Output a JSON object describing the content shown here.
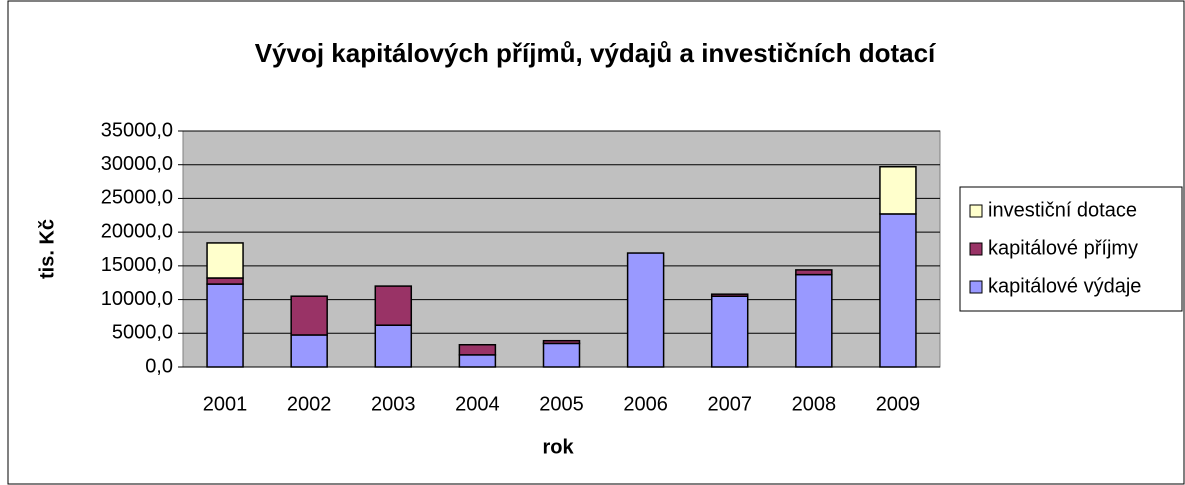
{
  "chart_data": {
    "type": "stacked_bar",
    "title": "Vývoj kapitálových příjmů, výdajů a investičních dotací",
    "x_label": "rok",
    "y_label": "tis. Kč",
    "categories": [
      "2001",
      "2002",
      "2003",
      "2004",
      "2005",
      "2006",
      "2007",
      "2008",
      "2009"
    ],
    "series": [
      {
        "name": "kapitálové výdaje",
        "color": "#9999ff",
        "values": [
          12300,
          4750,
          6200,
          1800,
          3500,
          16900,
          10500,
          13700,
          22700
        ]
      },
      {
        "name": "kapitálové příjmy",
        "color": "#993366",
        "values": [
          900,
          5750,
          5800,
          1500,
          400,
          0,
          300,
          700,
          0
        ]
      },
      {
        "name": "investiční dotace",
        "color": "#ffffcc",
        "values": [
          5200,
          0,
          0,
          0,
          0,
          0,
          0,
          0,
          7000
        ]
      }
    ],
    "ylim": [
      0,
      35000
    ],
    "yticks": [
      {
        "value": 0,
        "label": "0,0"
      },
      {
        "value": 5000,
        "label": "5000,0"
      },
      {
        "value": 10000,
        "label": "10000,0"
      },
      {
        "value": 15000,
        "label": "15000,0"
      },
      {
        "value": 20000,
        "label": "20000,0"
      },
      {
        "value": 25000,
        "label": "25000,0"
      },
      {
        "value": 30000,
        "label": "30000,0"
      },
      {
        "value": 35000,
        "label": "35000,0"
      }
    ],
    "grid": true,
    "legend": "right"
  }
}
